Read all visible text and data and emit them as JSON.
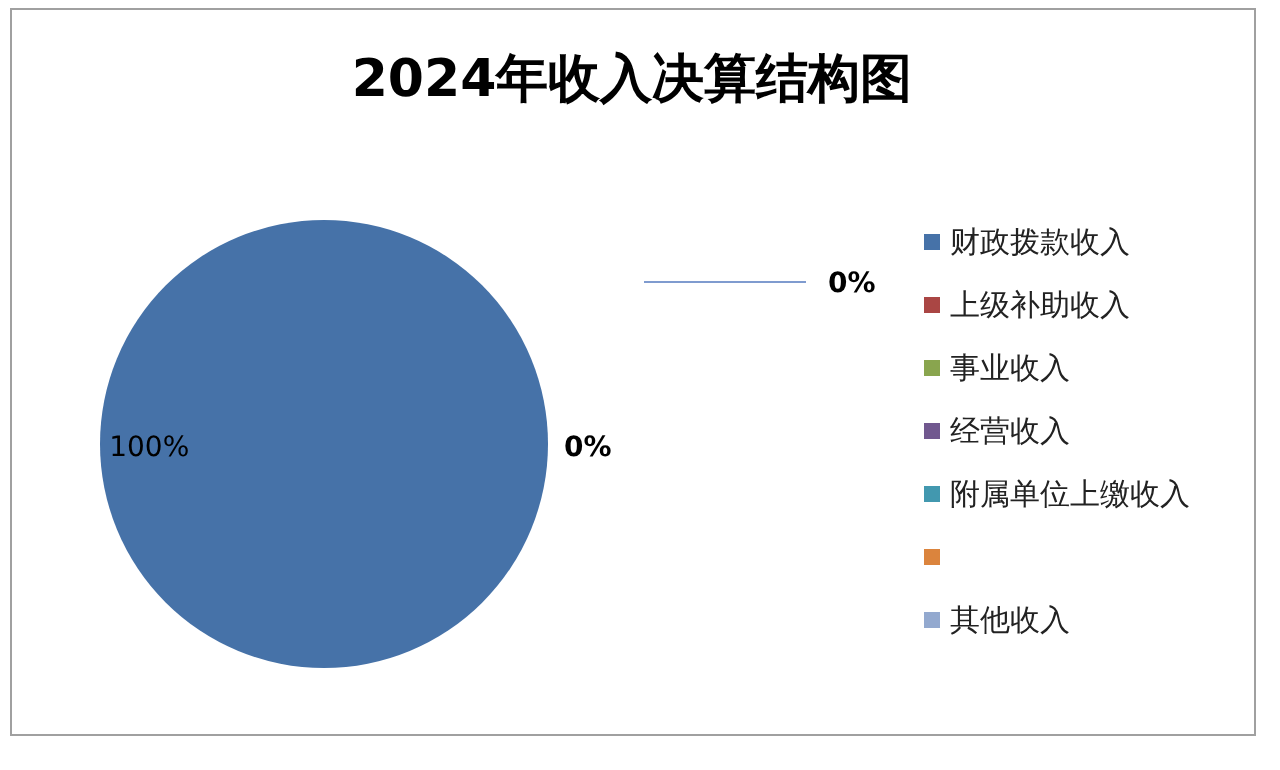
{
  "chart_data": {
    "type": "pie",
    "title": "2024年收入决算结构图",
    "categories": [
      "财政拨款收入",
      "上级补助收入",
      "事业收入",
      "经营收入",
      "附属单位上缴收入",
      null,
      "其他收入"
    ],
    "values": [
      100,
      0,
      0,
      0,
      0,
      0,
      0
    ],
    "colors": [
      "#4672a8",
      "#aa4644",
      "#89a54e",
      "#71588f",
      "#4298af",
      "#db843d",
      "#93a9cf"
    ],
    "value_labels": [
      "100%",
      "0%",
      "0%",
      null,
      null,
      null,
      null
    ],
    "legend": "right"
  }
}
